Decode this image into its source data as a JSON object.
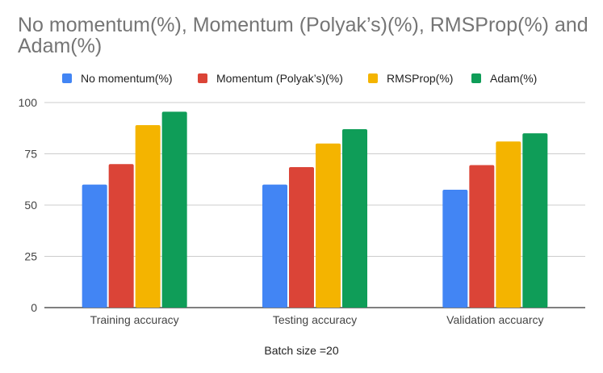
{
  "chart_data": {
    "type": "bar",
    "title": "No momentum(%), Momentum (Polyak’s)(%), RMSProp(%) and Adam(%)",
    "xlabel": "Batch size =20",
    "ylabel": "",
    "ylim": [
      0,
      100
    ],
    "yticks": [
      0,
      25,
      50,
      75,
      100
    ],
    "grid": true,
    "legend_position": "top",
    "categories": [
      "Training accuracy",
      "Testing accuracy",
      "Validation accuarcy"
    ],
    "series": [
      {
        "name": "No momentum(%)",
        "color": "#4285f4",
        "values": [
          60,
          60,
          57.5
        ]
      },
      {
        "name": "Momentum (Polyak’s)(%)",
        "color": "#db4437",
        "values": [
          70,
          68.5,
          69.5
        ]
      },
      {
        "name": "RMSProp(%)",
        "color": "#f4b400",
        "values": [
          89,
          80,
          81
        ]
      },
      {
        "name": "Adam(%)",
        "color": "#0f9d58",
        "values": [
          95.5,
          87,
          85
        ]
      }
    ]
  }
}
